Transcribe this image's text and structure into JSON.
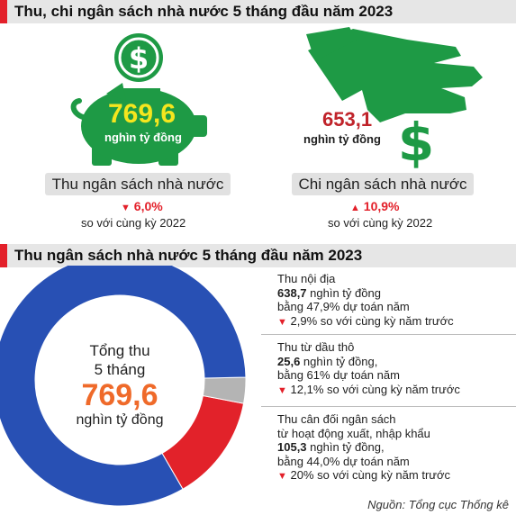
{
  "header1": {
    "title": "Thu, chi ngân sách nhà nước 5 tháng đầu năm 2023"
  },
  "revenue": {
    "amount": "769,6",
    "unit": "nghìn tỷ đồng",
    "label": "Thu ngân sách nhà nước",
    "change": "6,0%",
    "change_dir": "down",
    "compare": "so với cùng kỳ 2022"
  },
  "expenditure": {
    "amount": "653,1",
    "unit": "nghìn tỷ đồng",
    "label": "Chi ngân sách nhà nước",
    "change": "10,9%",
    "change_dir": "up",
    "compare": "so với cùng kỳ 2022"
  },
  "header2": {
    "title": "Thu ngân sách nhà nước 5 tháng đầu năm 2023"
  },
  "donut": {
    "center_line1": "Tổng thu",
    "center_line2": "5 tháng",
    "center_value": "769,6",
    "center_unit": "nghìn tỷ đồng"
  },
  "legend": [
    {
      "title": "Thu nội địa",
      "value": "638,7",
      "unit": " nghìn tỷ đồng",
      "plan": "bằng 47,9% dự toán năm",
      "change": "2,9% so với cùng kỳ năm trước"
    },
    {
      "title": "Thu từ dầu thô",
      "value": "25,6",
      "unit": " nghìn tỷ đồng,",
      "plan": "bằng 61% dự toán năm",
      "change": "12,1% so với cùng kỳ năm trước"
    },
    {
      "title": "Thu cân đối ngân sách",
      "title2": "từ hoạt động xuất, nhập khẩu",
      "value": "105,3",
      "unit": " nghìn tỷ đồng,",
      "plan": "bằng 44,0% dự toán năm",
      "change": "20% so với cùng kỳ năm trước"
    }
  ],
  "source": "Nguồn: Tổng cục Thống kê",
  "colors": {
    "accent_red": "#e3202a",
    "money_green": "#1e9a45",
    "highlight_yellow": "#f5e61e",
    "amount_red": "#c0232a",
    "center_orange": "#ef6a2a",
    "donut_blue": "#2850b4",
    "donut_red": "#e2222a",
    "donut_gray": "#b4b4b4"
  },
  "icons": [
    "piggy-bank-icon",
    "dollar-coin-icon",
    "hand-dropping-dollar-icon",
    "dollar-sign-icon"
  ],
  "chart_data": {
    "type": "pie",
    "categories": [
      "Thu nội địa",
      "Thu từ dầu thô",
      "Thu cân đối ngân sách từ hoạt động xuất, nhập khẩu"
    ],
    "values": [
      638.7,
      25.6,
      105.3
    ],
    "total": 769.6,
    "series_colors": [
      "#2850b4",
      "#b4b4b4",
      "#e2222a"
    ]
  }
}
